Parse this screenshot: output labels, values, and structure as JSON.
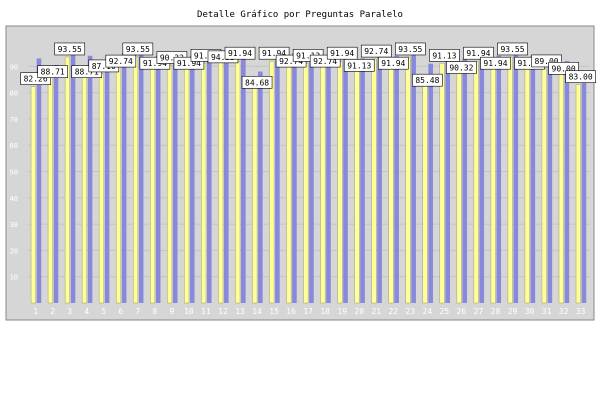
{
  "chart_data": {
    "type": "bar",
    "title": "Detalle Gráfico por Preguntas Paralelo",
    "xlabel": "",
    "ylabel": "",
    "ylim": [
      0,
      100
    ],
    "yticks": [
      10,
      20,
      30,
      40,
      50,
      60,
      70,
      80,
      90
    ],
    "grid": true,
    "legend": "none",
    "categories": [
      "1",
      "2",
      "3",
      "4",
      "5",
      "6",
      "7",
      "8",
      "9",
      "10",
      "11",
      "12",
      "13",
      "14",
      "15",
      "16",
      "17",
      "18",
      "19",
      "20",
      "21",
      "22",
      "23",
      "24",
      "25",
      "26",
      "27",
      "28",
      "29",
      "30",
      "31",
      "32",
      "33"
    ],
    "series": [
      {
        "color": "#ffff99",
        "values": [
          82.26,
          88.71,
          93.55,
          88.71,
          87.1,
          92.74,
          93.55,
          91.94,
          90.32,
          91.94,
          91.13,
          94.35,
          91.94,
          84.68,
          91.94,
          92.74,
          91.13,
          92.74,
          91.94,
          91.13,
          92.74,
          91.94,
          93.55,
          85.48,
          91.13,
          90.32,
          91.94,
          91.94,
          93.55,
          91.94,
          89.0,
          90.0,
          83.0
        ]
      },
      {
        "color": "#8888dd",
        "values": [
          93.0,
          90.5,
          95.0,
          94.0,
          89.0,
          95.0,
          95.0,
          94.0,
          93.0,
          94.0,
          93.0,
          95.5,
          94.0,
          88.0,
          94.0,
          95.0,
          93.0,
          94.5,
          94.0,
          93.0,
          94.5,
          94.0,
          95.0,
          91.0,
          93.5,
          93.0,
          94.0,
          94.0,
          95.0,
          94.0,
          92.0,
          92.0,
          88.0
        ]
      }
    ]
  }
}
